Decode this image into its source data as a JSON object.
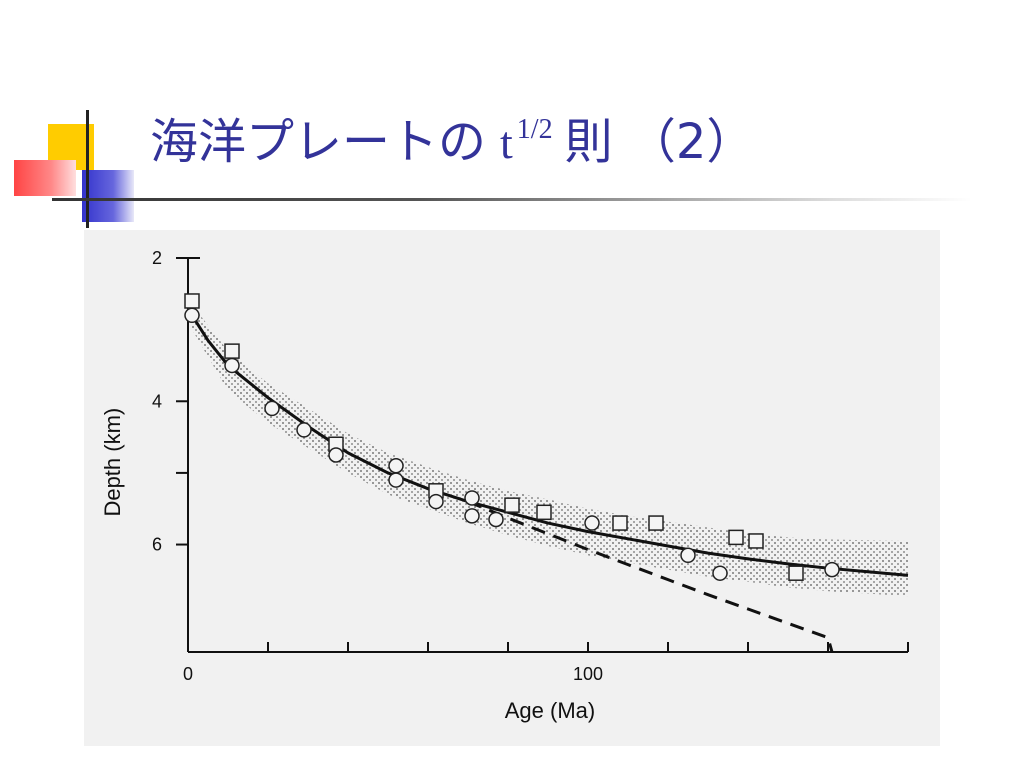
{
  "slide": {
    "title_main": "海洋プレートの",
    "title_var": "t",
    "title_exp": "1/2",
    "title_suffix": "則 （2）"
  },
  "colors": {
    "title": "#333399",
    "accent_yellow": "#ffcc00",
    "accent_red": "#ff4444",
    "accent_blue": "#3333cc",
    "figure_bg": "#f1f1f1"
  },
  "chart_data": {
    "type": "scatter",
    "title": "",
    "xlabel": "Age   (Ma)",
    "ylabel": "Depth   (km)",
    "xlim": [
      0,
      180
    ],
    "ylim": [
      2,
      7.5
    ],
    "y_inverted": true,
    "grid": false,
    "legend": "none",
    "x_tick_labels": [
      {
        "value": 0,
        "label": "0"
      },
      {
        "value": 100,
        "label": "100"
      }
    ],
    "x_minor_ticks": [
      20,
      40,
      60,
      80,
      120,
      140,
      160
    ],
    "y_tick_labels": [
      {
        "value": 2,
        "label": "2"
      },
      {
        "value": 4,
        "label": "4"
      },
      {
        "value": 6,
        "label": "6"
      }
    ],
    "y_minor_ticks": [
      5
    ],
    "series": [
      {
        "name": "",
        "kind": "squares",
        "points": [
          {
            "x": 1,
            "y": 2.6
          },
          {
            "x": 11,
            "y": 3.3
          },
          {
            "x": 37,
            "y": 4.6
          },
          {
            "x": 62,
            "y": 5.25
          },
          {
            "x": 81,
            "y": 5.45
          },
          {
            "x": 89,
            "y": 5.55
          },
          {
            "x": 108,
            "y": 5.7
          },
          {
            "x": 117,
            "y": 5.7
          },
          {
            "x": 137,
            "y": 5.9
          },
          {
            "x": 142,
            "y": 5.95
          },
          {
            "x": 152,
            "y": 6.4
          }
        ]
      },
      {
        "name": "",
        "kind": "circles",
        "points": [
          {
            "x": 1,
            "y": 2.8
          },
          {
            "x": 11,
            "y": 3.5
          },
          {
            "x": 21,
            "y": 4.1
          },
          {
            "x": 29,
            "y": 4.4
          },
          {
            "x": 37,
            "y": 4.75
          },
          {
            "x": 52,
            "y": 4.9
          },
          {
            "x": 52,
            "y": 5.1
          },
          {
            "x": 62,
            "y": 5.4
          },
          {
            "x": 71,
            "y": 5.35
          },
          {
            "x": 71,
            "y": 5.6
          },
          {
            "x": 77,
            "y": 5.65
          },
          {
            "x": 101,
            "y": 5.7
          },
          {
            "x": 125,
            "y": 6.15
          },
          {
            "x": 133,
            "y": 6.4
          },
          {
            "x": 161,
            "y": 6.35
          }
        ]
      },
      {
        "name": "",
        "kind": "solid-curve",
        "points": [
          {
            "x": 1,
            "y": 2.8
          },
          {
            "x": 5,
            "y": 3.15
          },
          {
            "x": 10,
            "y": 3.5
          },
          {
            "x": 20,
            "y": 3.95
          },
          {
            "x": 30,
            "y": 4.35
          },
          {
            "x": 40,
            "y": 4.72
          },
          {
            "x": 50,
            "y": 5.0
          },
          {
            "x": 60,
            "y": 5.22
          },
          {
            "x": 70,
            "y": 5.4
          },
          {
            "x": 80,
            "y": 5.55
          },
          {
            "x": 90,
            "y": 5.7
          },
          {
            "x": 100,
            "y": 5.82
          },
          {
            "x": 110,
            "y": 5.92
          },
          {
            "x": 120,
            "y": 6.02
          },
          {
            "x": 130,
            "y": 6.12
          },
          {
            "x": 140,
            "y": 6.2
          },
          {
            "x": 150,
            "y": 6.27
          },
          {
            "x": 160,
            "y": 6.33
          },
          {
            "x": 170,
            "y": 6.38
          },
          {
            "x": 180,
            "y": 6.43
          }
        ]
      },
      {
        "name": "",
        "kind": "dashed-curve",
        "points": [
          {
            "x": 70,
            "y": 5.4
          },
          {
            "x": 80,
            "y": 5.63
          },
          {
            "x": 90,
            "y": 5.85
          },
          {
            "x": 100,
            "y": 6.07
          },
          {
            "x": 110,
            "y": 6.28
          },
          {
            "x": 120,
            "y": 6.49
          },
          {
            "x": 130,
            "y": 6.7
          },
          {
            "x": 140,
            "y": 6.9
          },
          {
            "x": 150,
            "y": 7.1
          },
          {
            "x": 160,
            "y": 7.3
          },
          {
            "x": 161,
            "y": 7.5
          }
        ]
      }
    ],
    "band": {
      "upper": [
        {
          "x": 1,
          "y": 2.65
        },
        {
          "x": 10,
          "y": 3.3
        },
        {
          "x": 20,
          "y": 3.75
        },
        {
          "x": 30,
          "y": 4.1
        },
        {
          "x": 40,
          "y": 4.45
        },
        {
          "x": 50,
          "y": 4.72
        },
        {
          "x": 60,
          "y": 4.92
        },
        {
          "x": 70,
          "y": 5.1
        },
        {
          "x": 80,
          "y": 5.25
        },
        {
          "x": 90,
          "y": 5.37
        },
        {
          "x": 100,
          "y": 5.5
        },
        {
          "x": 110,
          "y": 5.6
        },
        {
          "x": 120,
          "y": 5.68
        },
        {
          "x": 130,
          "y": 5.76
        },
        {
          "x": 140,
          "y": 5.85
        },
        {
          "x": 150,
          "y": 5.9
        },
        {
          "x": 160,
          "y": 5.93
        },
        {
          "x": 180,
          "y": 5.95
        }
      ],
      "lower": [
        {
          "x": 1,
          "y": 3.0
        },
        {
          "x": 10,
          "y": 3.85
        },
        {
          "x": 20,
          "y": 4.3
        },
        {
          "x": 30,
          "y": 4.65
        },
        {
          "x": 40,
          "y": 5.0
        },
        {
          "x": 50,
          "y": 5.3
        },
        {
          "x": 60,
          "y": 5.5
        },
        {
          "x": 70,
          "y": 5.7
        },
        {
          "x": 80,
          "y": 5.87
        },
        {
          "x": 90,
          "y": 6.02
        },
        {
          "x": 100,
          "y": 6.15
        },
        {
          "x": 110,
          "y": 6.25
        },
        {
          "x": 120,
          "y": 6.35
        },
        {
          "x": 130,
          "y": 6.45
        },
        {
          "x": 140,
          "y": 6.52
        },
        {
          "x": 150,
          "y": 6.6
        },
        {
          "x": 160,
          "y": 6.65
        },
        {
          "x": 180,
          "y": 6.72
        }
      ]
    }
  }
}
